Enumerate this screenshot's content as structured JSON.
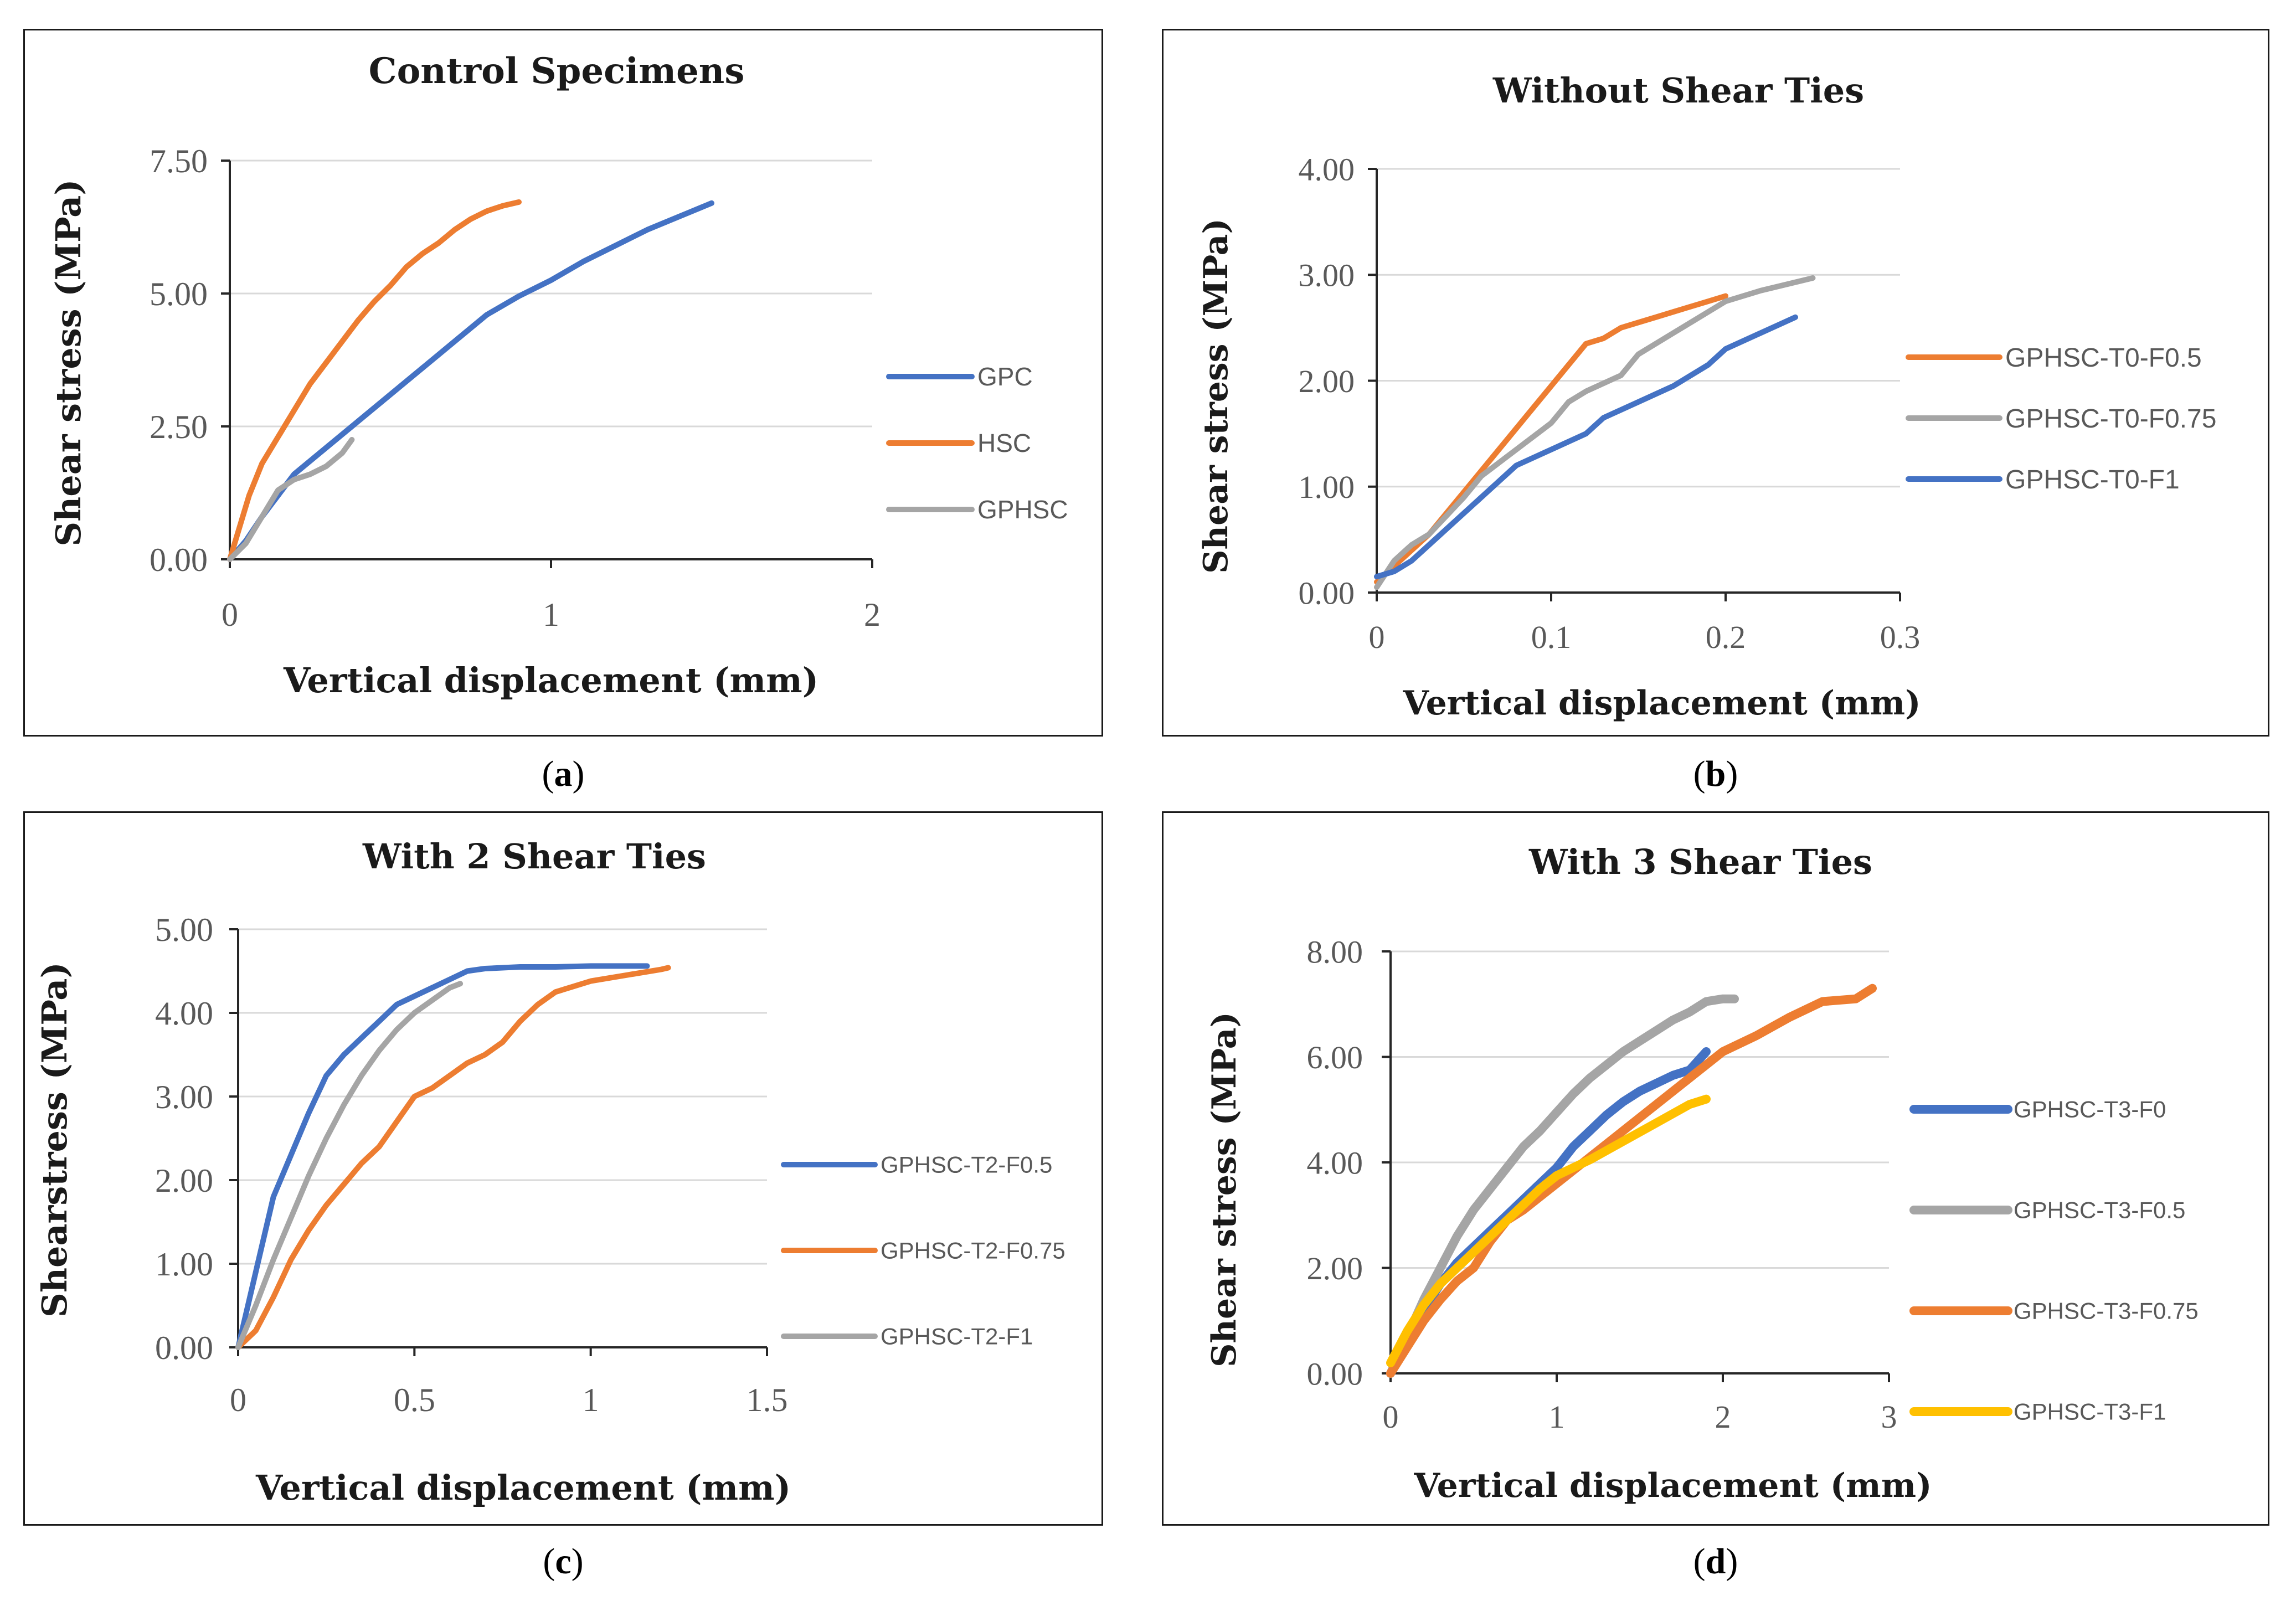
{
  "captions": [
    "(",
    "a",
    ")",
    "(",
    "b",
    ")",
    "(",
    "c",
    ")",
    "(",
    "d",
    ")"
  ],
  "chart_data": [
    {
      "type": "line",
      "title": "Control Specimens",
      "xlabel": "Vertical displacement (mm)",
      "ylabel": "Shear stress (MPa)",
      "xlim": [
        0,
        2
      ],
      "ylim": [
        0,
        7.5
      ],
      "xticks": [
        0,
        1,
        2
      ],
      "xtick_labels": [
        "0",
        "1",
        "2"
      ],
      "yticks": [
        0,
        2.5,
        5,
        7.5
      ],
      "ytick_labels": [
        "0.00",
        "2.50",
        "5.00",
        "7.50"
      ],
      "legend": "right",
      "series": [
        {
          "name": "GPC",
          "color": "#4472C4",
          "x": [
            0,
            0.05,
            0.1,
            0.2,
            0.3,
            0.4,
            0.5,
            0.6,
            0.7,
            0.8,
            0.9,
            1.0,
            1.1,
            1.2,
            1.3,
            1.4,
            1.5
          ],
          "y": [
            0,
            0.35,
            0.8,
            1.6,
            2.1,
            2.6,
            3.1,
            3.6,
            4.1,
            4.6,
            4.95,
            5.25,
            5.6,
            5.9,
            6.2,
            6.45,
            6.7
          ]
        },
        {
          "name": "HSC",
          "color": "#ED7D31",
          "x": [
            0,
            0.03,
            0.06,
            0.1,
            0.15,
            0.2,
            0.25,
            0.3,
            0.35,
            0.4,
            0.45,
            0.5,
            0.55,
            0.6,
            0.65,
            0.7,
            0.75,
            0.8,
            0.85,
            0.9
          ],
          "y": [
            0,
            0.6,
            1.2,
            1.8,
            2.3,
            2.8,
            3.3,
            3.7,
            4.1,
            4.5,
            4.85,
            5.15,
            5.5,
            5.75,
            5.95,
            6.2,
            6.4,
            6.55,
            6.65,
            6.72
          ]
        },
        {
          "name": "GPHSC",
          "color": "#A5A5A5",
          "x": [
            0,
            0.05,
            0.1,
            0.15,
            0.2,
            0.25,
            0.3,
            0.35,
            0.38
          ],
          "y": [
            0,
            0.3,
            0.8,
            1.3,
            1.5,
            1.6,
            1.75,
            2.0,
            2.25
          ]
        }
      ]
    },
    {
      "type": "line",
      "title": "Without Shear Ties",
      "xlabel": "Vertical displacement (mm)",
      "ylabel": "Shear stress  (MPa)",
      "xlim": [
        0,
        0.3
      ],
      "ylim": [
        0,
        4
      ],
      "xticks": [
        0,
        0.1,
        0.2,
        0.3
      ],
      "xtick_labels": [
        "0",
        "0.1",
        "0.2",
        "0.3"
      ],
      "yticks": [
        0,
        1,
        2,
        3,
        4
      ],
      "ytick_labels": [
        "0.00",
        "1.00",
        "2.00",
        "3.00",
        "4.00"
      ],
      "legend": "right",
      "series": [
        {
          "name": "GPHSC-T0-F0.5",
          "color": "#ED7D31",
          "x": [
            0,
            0.01,
            0.02,
            0.03,
            0.04,
            0.05,
            0.06,
            0.07,
            0.08,
            0.09,
            0.1,
            0.11,
            0.12,
            0.13,
            0.14,
            0.15,
            0.16,
            0.17,
            0.18,
            0.19,
            0.2
          ],
          "y": [
            0.1,
            0.25,
            0.4,
            0.55,
            0.75,
            0.95,
            1.15,
            1.35,
            1.55,
            1.75,
            1.95,
            2.15,
            2.35,
            2.4,
            2.5,
            2.55,
            2.6,
            2.65,
            2.7,
            2.75,
            2.8
          ]
        },
        {
          "name": "GPHSC-T0-F0.75",
          "color": "#A5A5A5",
          "x": [
            0,
            0.01,
            0.02,
            0.03,
            0.05,
            0.06,
            0.08,
            0.1,
            0.11,
            0.12,
            0.14,
            0.15,
            0.17,
            0.18,
            0.2,
            0.22,
            0.25
          ],
          "y": [
            0.05,
            0.3,
            0.45,
            0.55,
            0.9,
            1.1,
            1.35,
            1.6,
            1.8,
            1.9,
            2.05,
            2.25,
            2.45,
            2.55,
            2.75,
            2.85,
            2.97
          ]
        },
        {
          "name": "GPHSC-T0-F1",
          "color": "#4472C4",
          "x": [
            0,
            0.01,
            0.02,
            0.03,
            0.05,
            0.07,
            0.08,
            0.1,
            0.12,
            0.13,
            0.15,
            0.17,
            0.19,
            0.2,
            0.22,
            0.24
          ],
          "y": [
            0.15,
            0.2,
            0.3,
            0.45,
            0.75,
            1.05,
            1.2,
            1.35,
            1.5,
            1.65,
            1.8,
            1.95,
            2.15,
            2.3,
            2.45,
            2.6
          ]
        }
      ]
    },
    {
      "type": "line",
      "title": "With 2 Shear Ties",
      "xlabel": "Vertical displacement (mm)",
      "ylabel": "Shearstress (MPa)",
      "xlim": [
        0,
        1.5
      ],
      "ylim": [
        0,
        5
      ],
      "xticks": [
        0,
        0.5,
        1,
        1.5
      ],
      "xtick_labels": [
        "0",
        "0.5",
        "1",
        "1.5"
      ],
      "yticks": [
        0,
        1,
        2,
        3,
        4,
        5
      ],
      "ytick_labels": [
        "0.00",
        "1.00",
        "2.00",
        "3.00",
        "4.00",
        "5.00"
      ],
      "legend": "right",
      "series": [
        {
          "name": "GPHSC-T2-F0.5",
          "color": "#4472C4",
          "x": [
            0,
            0.05,
            0.1,
            0.15,
            0.2,
            0.25,
            0.3,
            0.35,
            0.4,
            0.45,
            0.5,
            0.55,
            0.6,
            0.65,
            0.7,
            0.8,
            0.9,
            1.0,
            1.1,
            1.16
          ],
          "y": [
            0,
            0.9,
            1.8,
            2.3,
            2.8,
            3.25,
            3.5,
            3.7,
            3.9,
            4.1,
            4.2,
            4.3,
            4.4,
            4.5,
            4.53,
            4.55,
            4.55,
            4.56,
            4.56,
            4.56
          ]
        },
        {
          "name": "GPHSC-T2-F0.75",
          "color": "#ED7D31",
          "x": [
            0,
            0.05,
            0.1,
            0.15,
            0.2,
            0.25,
            0.3,
            0.35,
            0.4,
            0.45,
            0.5,
            0.55,
            0.6,
            0.65,
            0.7,
            0.75,
            0.8,
            0.85,
            0.9,
            1.0,
            1.1,
            1.2,
            1.22
          ],
          "y": [
            0,
            0.2,
            0.6,
            1.05,
            1.4,
            1.7,
            1.95,
            2.2,
            2.4,
            2.7,
            3.0,
            3.1,
            3.25,
            3.4,
            3.5,
            3.65,
            3.9,
            4.1,
            4.25,
            4.38,
            4.45,
            4.52,
            4.54
          ]
        },
        {
          "name": "GPHSC-T2-F1",
          "color": "#A5A5A5",
          "x": [
            0,
            0.05,
            0.1,
            0.15,
            0.2,
            0.25,
            0.3,
            0.35,
            0.4,
            0.45,
            0.5,
            0.55,
            0.6,
            0.63
          ],
          "y": [
            0,
            0.5,
            1.05,
            1.55,
            2.05,
            2.5,
            2.9,
            3.25,
            3.55,
            3.8,
            4.0,
            4.15,
            4.3,
            4.35
          ]
        }
      ]
    },
    {
      "type": "line",
      "title": "With 3 Shear Ties",
      "xlabel": "Vertical displacement (mm)",
      "ylabel": "Shear stress (MPa)",
      "xlim": [
        0,
        3
      ],
      "ylim": [
        0,
        8
      ],
      "xticks": [
        0,
        1,
        2,
        3
      ],
      "xtick_labels": [
        "0",
        "1",
        "2",
        "3"
      ],
      "yticks": [
        0,
        2,
        4,
        6,
        8
      ],
      "ytick_labels": [
        "0.00",
        "2.00",
        "4.00",
        "6.00",
        "8.00"
      ],
      "legend": "right",
      "series": [
        {
          "name": "GPHSC-T3-F0",
          "color": "#4472C4",
          "x": [
            0,
            0.1,
            0.2,
            0.3,
            0.4,
            0.5,
            0.6,
            0.7,
            0.8,
            0.9,
            1.0,
            1.1,
            1.2,
            1.3,
            1.4,
            1.5,
            1.6,
            1.7,
            1.8,
            1.9
          ],
          "y": [
            0,
            0.6,
            1.2,
            1.7,
            2.1,
            2.4,
            2.7,
            3.0,
            3.3,
            3.6,
            3.9,
            4.3,
            4.6,
            4.9,
            5.15,
            5.35,
            5.5,
            5.65,
            5.75,
            6.1
          ]
        },
        {
          "name": "GPHSC-T3-F0.5",
          "color": "#A5A5A5",
          "x": [
            0,
            0.1,
            0.2,
            0.3,
            0.4,
            0.5,
            0.6,
            0.7,
            0.8,
            0.9,
            1.0,
            1.1,
            1.2,
            1.3,
            1.4,
            1.5,
            1.6,
            1.7,
            1.8,
            1.9,
            2.0,
            2.07
          ],
          "y": [
            0,
            0.7,
            1.4,
            2.0,
            2.6,
            3.1,
            3.5,
            3.9,
            4.3,
            4.6,
            4.95,
            5.3,
            5.6,
            5.85,
            6.1,
            6.3,
            6.5,
            6.7,
            6.85,
            7.05,
            7.1,
            7.1
          ]
        },
        {
          "name": "GPHSC-T3-F0.75",
          "color": "#ED7D31",
          "x": [
            0,
            0.1,
            0.2,
            0.3,
            0.4,
            0.5,
            0.6,
            0.7,
            0.8,
            0.9,
            1.0,
            1.2,
            1.4,
            1.6,
            1.8,
            2.0,
            2.2,
            2.4,
            2.6,
            2.8,
            2.9
          ],
          "y": [
            0,
            0.5,
            1.0,
            1.4,
            1.75,
            2.0,
            2.5,
            2.9,
            3.1,
            3.35,
            3.6,
            4.1,
            4.6,
            5.1,
            5.6,
            6.1,
            6.4,
            6.75,
            7.05,
            7.1,
            7.3
          ]
        },
        {
          "name": "GPHSC-T3-F1",
          "color": "#FFC000",
          "x": [
            0,
            0.1,
            0.2,
            0.3,
            0.4,
            0.5,
            0.6,
            0.7,
            0.8,
            0.9,
            1.0,
            1.2,
            1.4,
            1.6,
            1.8,
            1.9
          ],
          "y": [
            0.2,
            0.8,
            1.3,
            1.7,
            2.0,
            2.3,
            2.6,
            2.9,
            3.2,
            3.5,
            3.75,
            4.05,
            4.4,
            4.75,
            5.1,
            5.2
          ]
        }
      ]
    }
  ]
}
